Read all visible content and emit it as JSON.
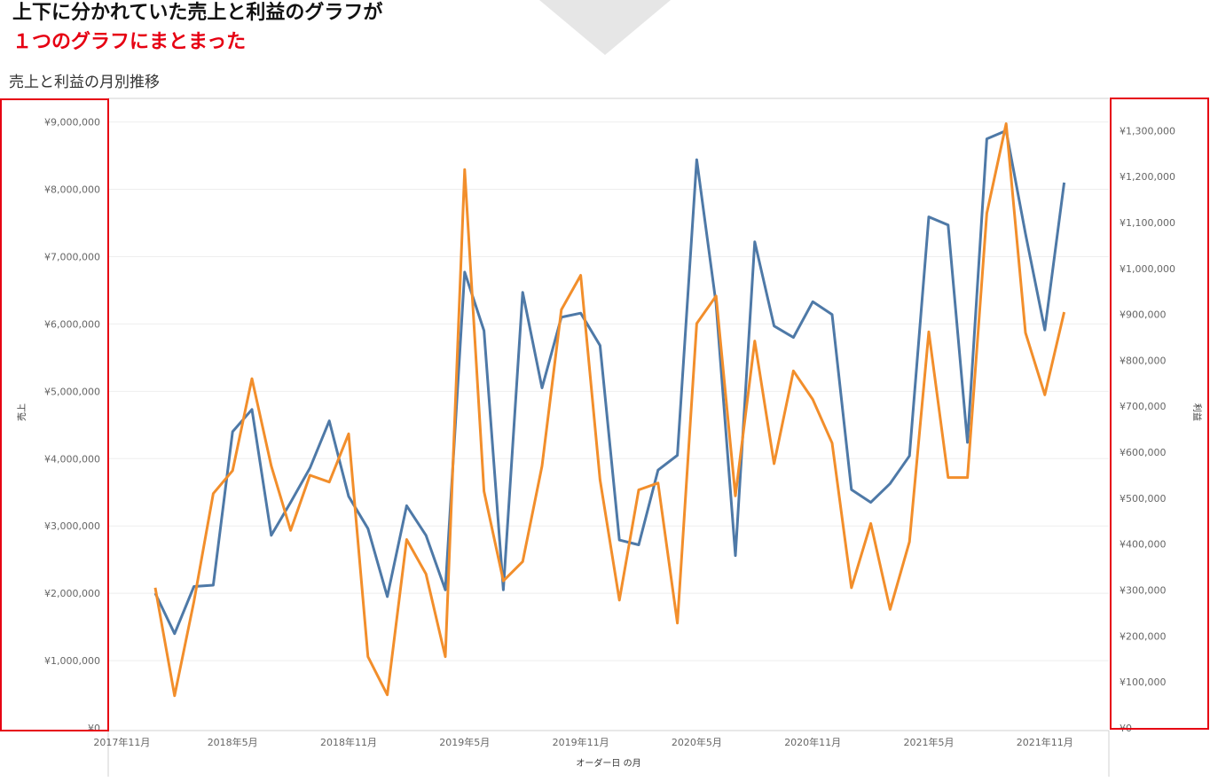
{
  "headline": {
    "line1": "上下に分かれていた売上と利益のグラフが",
    "line2": "１つのグラフにまとまった"
  },
  "chart_data": {
    "type": "line",
    "title": "売上と利益の月別推移",
    "xlabel": "オーダー日 の月",
    "ylabel_left": "売上",
    "ylabel_right": "利益",
    "x_tick_labels": [
      "2017年11月",
      "2018年5月",
      "2018年11月",
      "2019年5月",
      "2019年11月",
      "2020年5月",
      "2020年11月",
      "2021年5月",
      "2021年11月"
    ],
    "left_ticks": [
      "¥9,000,000",
      "¥8,000,000",
      "¥7,000,000",
      "¥6,000,000",
      "¥5,000,000",
      "¥4,000,000",
      "¥3,000,000",
      "¥2,000,000",
      "¥1,000,000",
      "¥0"
    ],
    "right_ticks": [
      "¥1,300,000",
      "¥1,200,000",
      "¥1,100,000",
      "¥1,000,000",
      "¥900,000",
      "¥800,000",
      "¥700,000",
      "¥600,000",
      "¥500,000",
      "¥400,000",
      "¥300,000",
      "¥200,000",
      "¥100,000",
      "¥0"
    ],
    "ylim_left": [
      0,
      9350000
    ],
    "ylim_right": [
      0,
      1370000
    ],
    "grid": true,
    "colors": {
      "sales": "#4e79a7",
      "profit": "#f28e2b",
      "highlight_box": "#e60012"
    },
    "x": [
      "2018-01",
      "2018-02",
      "2018-03",
      "2018-04",
      "2018-05",
      "2018-06",
      "2018-07",
      "2018-08",
      "2018-09",
      "2018-10",
      "2018-11",
      "2018-12",
      "2019-01",
      "2019-02",
      "2019-03",
      "2019-04",
      "2019-05",
      "2019-06",
      "2019-07",
      "2019-08",
      "2019-09",
      "2019-10",
      "2019-11",
      "2019-12",
      "2020-01",
      "2020-02",
      "2020-03",
      "2020-04",
      "2020-05",
      "2020-06",
      "2020-07",
      "2020-08",
      "2020-09",
      "2020-10",
      "2020-11",
      "2020-12",
      "2021-01",
      "2021-02",
      "2021-03",
      "2021-04",
      "2021-05",
      "2021-06",
      "2021-07",
      "2021-08",
      "2021-09",
      "2021-10",
      "2021-11",
      "2021-12"
    ],
    "series": [
      {
        "axis": "left",
        "values": [
          2000000,
          1400000,
          2100000,
          2120000,
          4400000,
          4730000,
          2860000,
          3350000,
          3860000,
          4560000,
          3440000,
          2960000,
          1950000,
          3300000,
          2860000,
          2050000,
          6770000,
          5900000,
          2050000,
          6470000,
          5050000,
          6100000,
          6160000,
          5680000,
          2790000,
          2720000,
          3830000,
          4050000,
          8440000,
          6300000,
          2560000,
          7220000,
          5970000,
          5800000,
          6330000,
          6140000,
          3540000,
          3350000,
          3630000,
          4040000,
          7590000,
          7470000,
          4240000,
          8750000,
          8870000,
          7340000,
          5910000,
          8100000
        ]
      },
      {
        "axis": "right",
        "values": [
          305000,
          70000,
          275000,
          510000,
          560000,
          760000,
          570000,
          430000,
          550000,
          535000,
          640000,
          155000,
          72000,
          410000,
          335000,
          155000,
          1215000,
          515000,
          320000,
          362000,
          570000,
          910000,
          985000,
          540000,
          278000,
          518000,
          533000,
          228000,
          880000,
          940000,
          505000,
          842000,
          575000,
          777000,
          715000,
          620000,
          305000,
          445000,
          258000,
          405000,
          862000,
          545000,
          545000,
          1120000,
          1315000,
          860000,
          725000,
          905000
        ]
      }
    ]
  }
}
